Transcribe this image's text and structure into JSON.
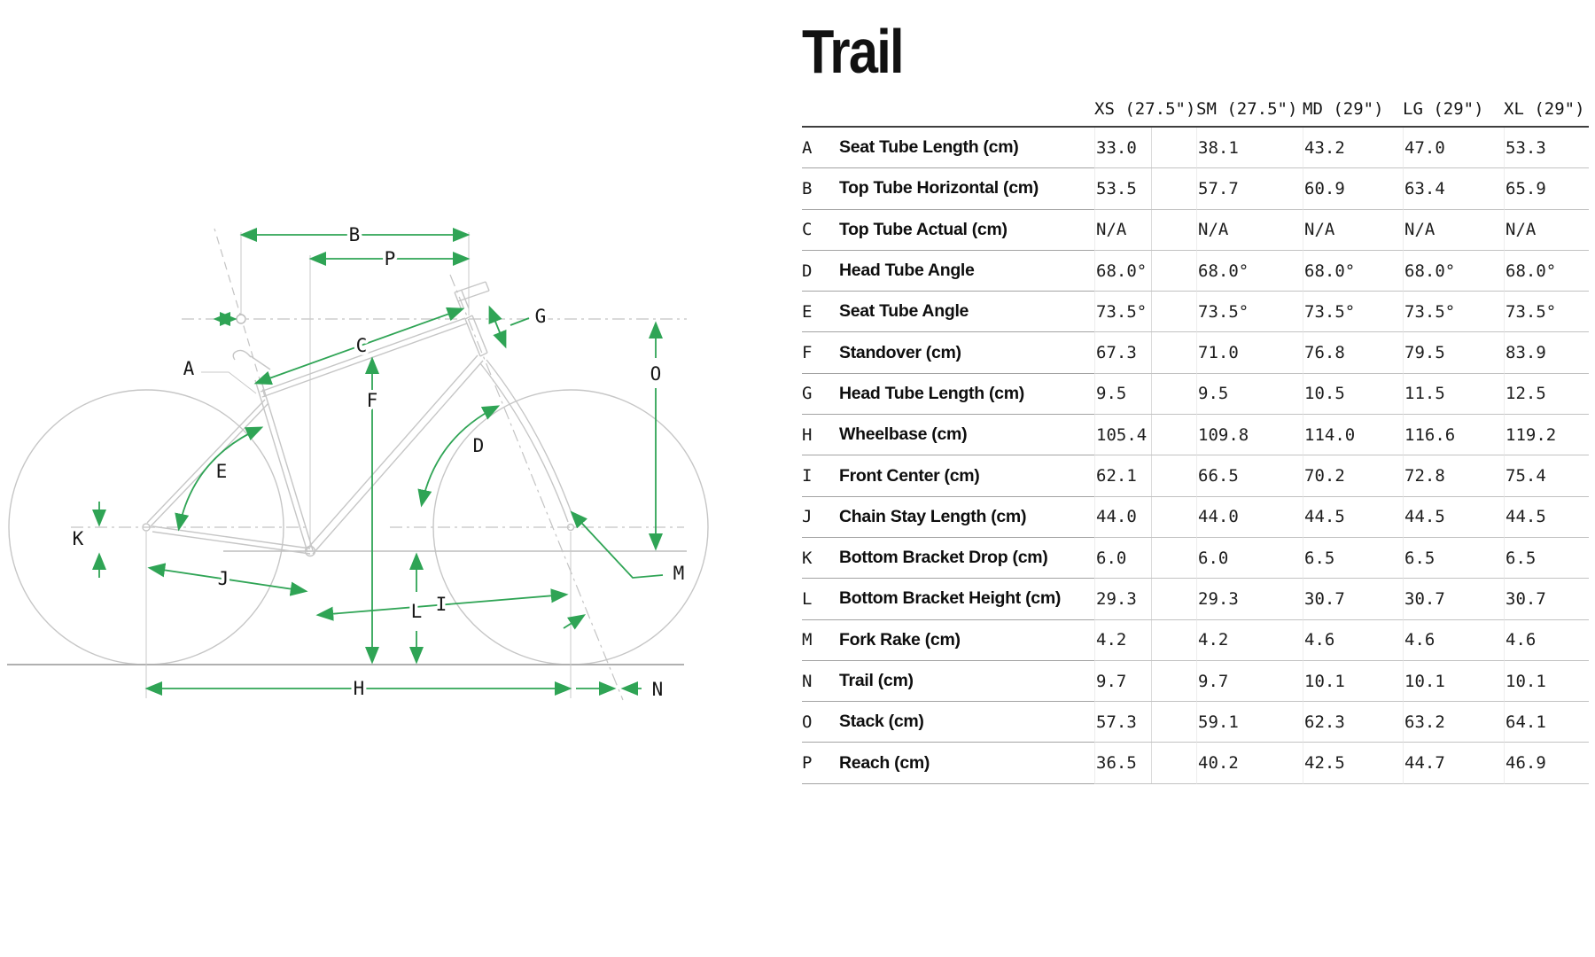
{
  "page": {
    "title": "Trail"
  },
  "table": {
    "size_headers": [
      "XS (27.5\")",
      "SM (27.5\")",
      "MD (29\")",
      "LG (29\")",
      "XL (29\")"
    ],
    "rows": [
      {
        "letter": "A",
        "label": "Seat Tube Length (cm)",
        "values": [
          "33.0",
          "38.1",
          "43.2",
          "47.0",
          "53.3"
        ]
      },
      {
        "letter": "B",
        "label": "Top Tube Horizontal (cm)",
        "values": [
          "53.5",
          "57.7",
          "60.9",
          "63.4",
          "65.9"
        ]
      },
      {
        "letter": "C",
        "label": "Top Tube Actual (cm)",
        "values": [
          "N/A",
          "N/A",
          "N/A",
          "N/A",
          "N/A"
        ]
      },
      {
        "letter": "D",
        "label": "Head Tube Angle",
        "values": [
          "68.0°",
          "68.0°",
          "68.0°",
          "68.0°",
          "68.0°"
        ]
      },
      {
        "letter": "E",
        "label": "Seat Tube Angle",
        "values": [
          "73.5°",
          "73.5°",
          "73.5°",
          "73.5°",
          "73.5°"
        ]
      },
      {
        "letter": "F",
        "label": "Standover (cm)",
        "values": [
          "67.3",
          "71.0",
          "76.8",
          "79.5",
          "83.9"
        ]
      },
      {
        "letter": "G",
        "label": "Head Tube Length (cm)",
        "values": [
          "9.5",
          "9.5",
          "10.5",
          "11.5",
          "12.5"
        ]
      },
      {
        "letter": "H",
        "label": "Wheelbase (cm)",
        "values": [
          "105.4",
          "109.8",
          "114.0",
          "116.6",
          "119.2"
        ]
      },
      {
        "letter": "I",
        "label": "Front Center (cm)",
        "values": [
          "62.1",
          "66.5",
          "70.2",
          "72.8",
          "75.4"
        ]
      },
      {
        "letter": "J",
        "label": "Chain Stay Length (cm)",
        "values": [
          "44.0",
          "44.0",
          "44.5",
          "44.5",
          "44.5"
        ]
      },
      {
        "letter": "K",
        "label": "Bottom Bracket Drop (cm)",
        "values": [
          "6.0",
          "6.0",
          "6.5",
          "6.5",
          "6.5"
        ]
      },
      {
        "letter": "L",
        "label": "Bottom Bracket Height (cm)",
        "values": [
          "29.3",
          "29.3",
          "30.7",
          "30.7",
          "30.7"
        ]
      },
      {
        "letter": "M",
        "label": "Fork Rake (cm)",
        "values": [
          "4.2",
          "4.2",
          "4.6",
          "4.6",
          "4.6"
        ]
      },
      {
        "letter": "N",
        "label": "Trail (cm)",
        "values": [
          "9.7",
          "9.7",
          "10.1",
          "10.1",
          "10.1"
        ]
      },
      {
        "letter": "O",
        "label": "Stack (cm)",
        "values": [
          "57.3",
          "59.1",
          "62.3",
          "63.2",
          "64.1"
        ]
      },
      {
        "letter": "P",
        "label": "Reach (cm)",
        "values": [
          "36.5",
          "40.2",
          "42.5",
          "44.7",
          "46.9"
        ]
      }
    ]
  },
  "diagram": {
    "labels": [
      "A",
      "B",
      "C",
      "D",
      "E",
      "F",
      "G",
      "H",
      "I",
      "J",
      "K",
      "L",
      "M",
      "N",
      "O",
      "P"
    ],
    "arrow_color": "#2fa455",
    "frame_color": "#c6c6c6"
  }
}
